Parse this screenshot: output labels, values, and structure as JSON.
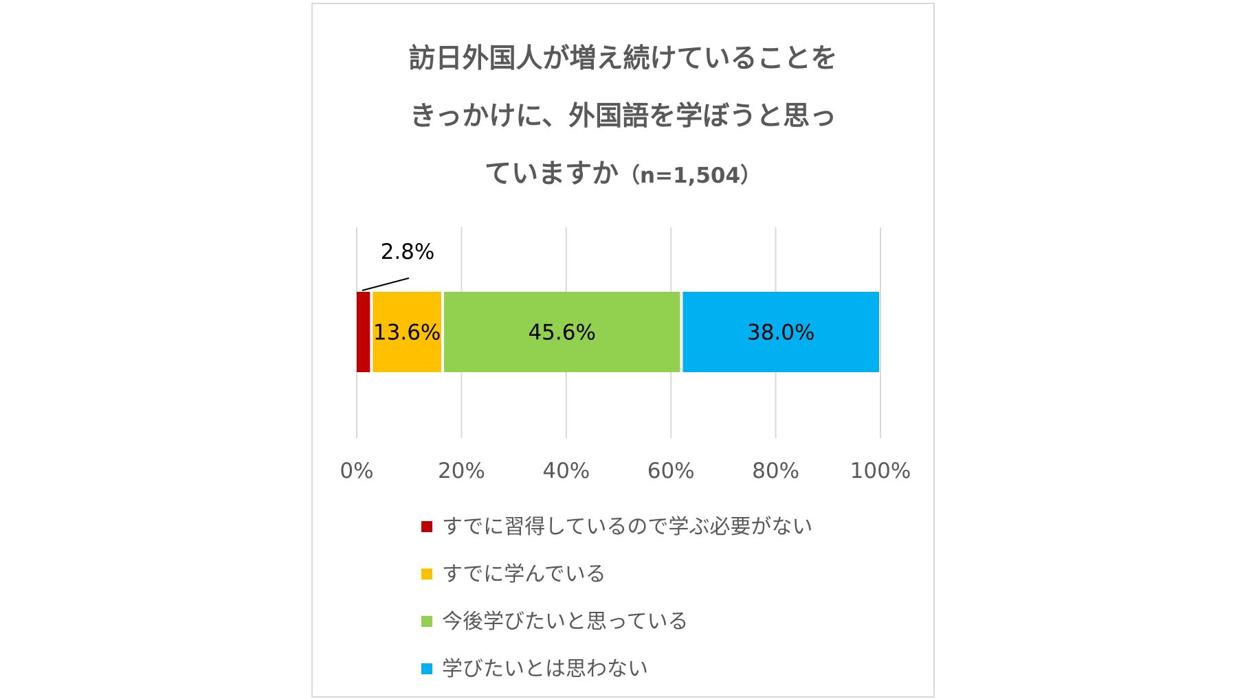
{
  "chart_data": {
    "type": "bar",
    "orientation": "horizontal-stacked-100",
    "title_lines": [
      "訪日外国人が増え続けていることを",
      "きっかけに、外国語を学ぼうと思っ",
      "ていますか"
    ],
    "title_n": "（n=1,504）",
    "xlim": [
      0,
      100
    ],
    "x_ticks": [
      "0%",
      "20%",
      "40%",
      "60%",
      "80%",
      "100%"
    ],
    "grid": true,
    "legend_position": "bottom",
    "series": [
      {
        "name": "すでに習得しているので学ぶ必要がない",
        "value": 2.8,
        "label": "2.8%",
        "color": "#c00000"
      },
      {
        "name": "すでに学んでいる",
        "value": 13.6,
        "label": "13.6%",
        "color": "#ffc000"
      },
      {
        "name": "今後学びたいと思っている",
        "value": 45.6,
        "label": "45.6%",
        "color": "#92d050"
      },
      {
        "name": "学びたいとは思わない",
        "value": 38.0,
        "label": "38.0%",
        "color": "#00b0f0"
      }
    ]
  }
}
